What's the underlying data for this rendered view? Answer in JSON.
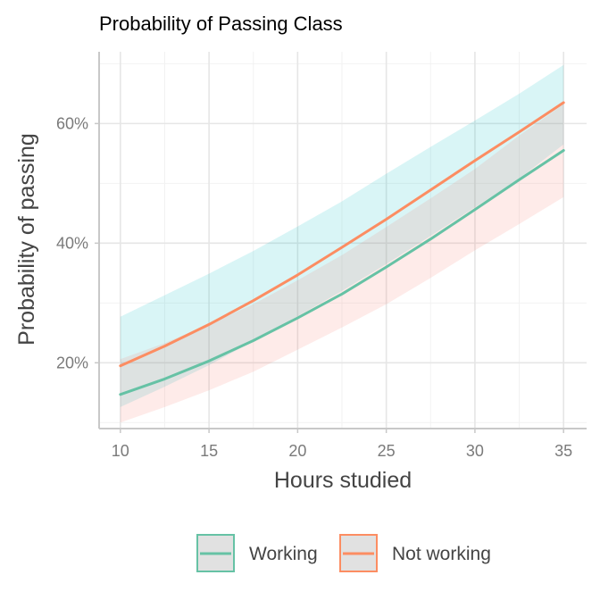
{
  "chart_data": {
    "type": "line",
    "title": "Probability of Passing Class",
    "xlabel": "Hours studied",
    "ylabel": "Probability of passing",
    "xlim": [
      8.8,
      36.3
    ],
    "ylim": [
      0.09,
      0.72
    ],
    "x_ticks": [
      10,
      15,
      20,
      25,
      30,
      35
    ],
    "x_tick_labels": [
      "10",
      "15",
      "20",
      "25",
      "30",
      "35"
    ],
    "y_ticks": [
      0.2,
      0.4,
      0.6
    ],
    "y_tick_labels": [
      "20%",
      "40%",
      "60%"
    ],
    "grid": true,
    "legend_position": "bottom",
    "x": [
      10,
      12.5,
      15,
      17.5,
      20,
      22.5,
      25,
      27.5,
      30,
      32.5,
      35
    ],
    "series": [
      {
        "name": "Working",
        "color": "#66c2a5",
        "values": [
          0.147,
          0.173,
          0.203,
          0.237,
          0.275,
          0.315,
          0.36,
          0.407,
          0.456,
          0.506,
          0.555
        ],
        "lower": [
          0.1,
          0.126,
          0.154,
          0.185,
          0.222,
          0.259,
          0.298,
          0.342,
          0.388,
          0.432,
          0.477
        ],
        "upper": [
          0.206,
          0.233,
          0.264,
          0.298,
          0.338,
          0.38,
          0.427,
          0.475,
          0.524,
          0.58,
          0.632
        ],
        "band_color": "#f8766d"
      },
      {
        "name": "Not working",
        "color": "#fc8d62",
        "values": [
          0.195,
          0.228,
          0.264,
          0.304,
          0.347,
          0.393,
          0.44,
          0.489,
          0.538,
          0.586,
          0.635
        ],
        "lower": [
          0.126,
          0.16,
          0.196,
          0.236,
          0.278,
          0.32,
          0.365,
          0.412,
          0.46,
          0.508,
          0.565
        ],
        "upper": [
          0.277,
          0.313,
          0.349,
          0.387,
          0.428,
          0.47,
          0.516,
          0.561,
          0.605,
          0.65,
          0.698
        ],
        "band_color": "#00bfc4"
      }
    ]
  }
}
